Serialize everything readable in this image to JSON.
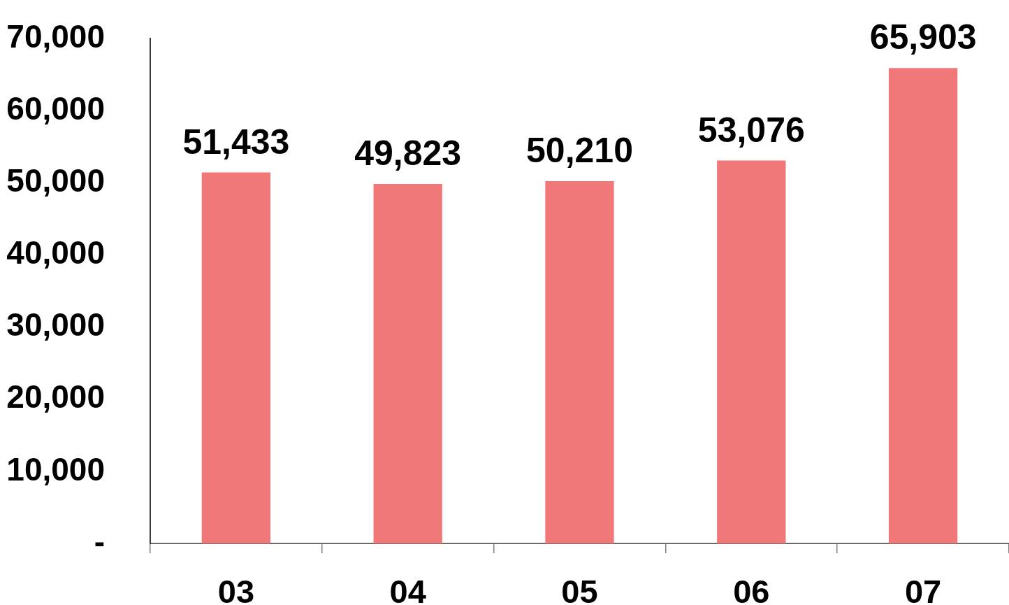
{
  "chart_data": {
    "type": "bar",
    "categories": [
      "03",
      "04",
      "05",
      "06",
      "07"
    ],
    "values": [
      51433,
      49823,
      50210,
      53076,
      65903
    ],
    "value_labels": [
      "51,433",
      "49,823",
      "50,210",
      "53,076",
      "65,903"
    ],
    "color": "#f07878",
    "ylim": [
      0,
      70000
    ],
    "yticks": [
      {
        "value": 0,
        "label": "-"
      },
      {
        "value": 10000,
        "label": "10,000"
      },
      {
        "value": 20000,
        "label": "20,000"
      },
      {
        "value": 30000,
        "label": "30,000"
      },
      {
        "value": 40000,
        "label": "40,000"
      },
      {
        "value": 50000,
        "label": "50,000"
      },
      {
        "value": 60000,
        "label": "60,000"
      },
      {
        "value": 70000,
        "label": "70,000"
      }
    ]
  }
}
